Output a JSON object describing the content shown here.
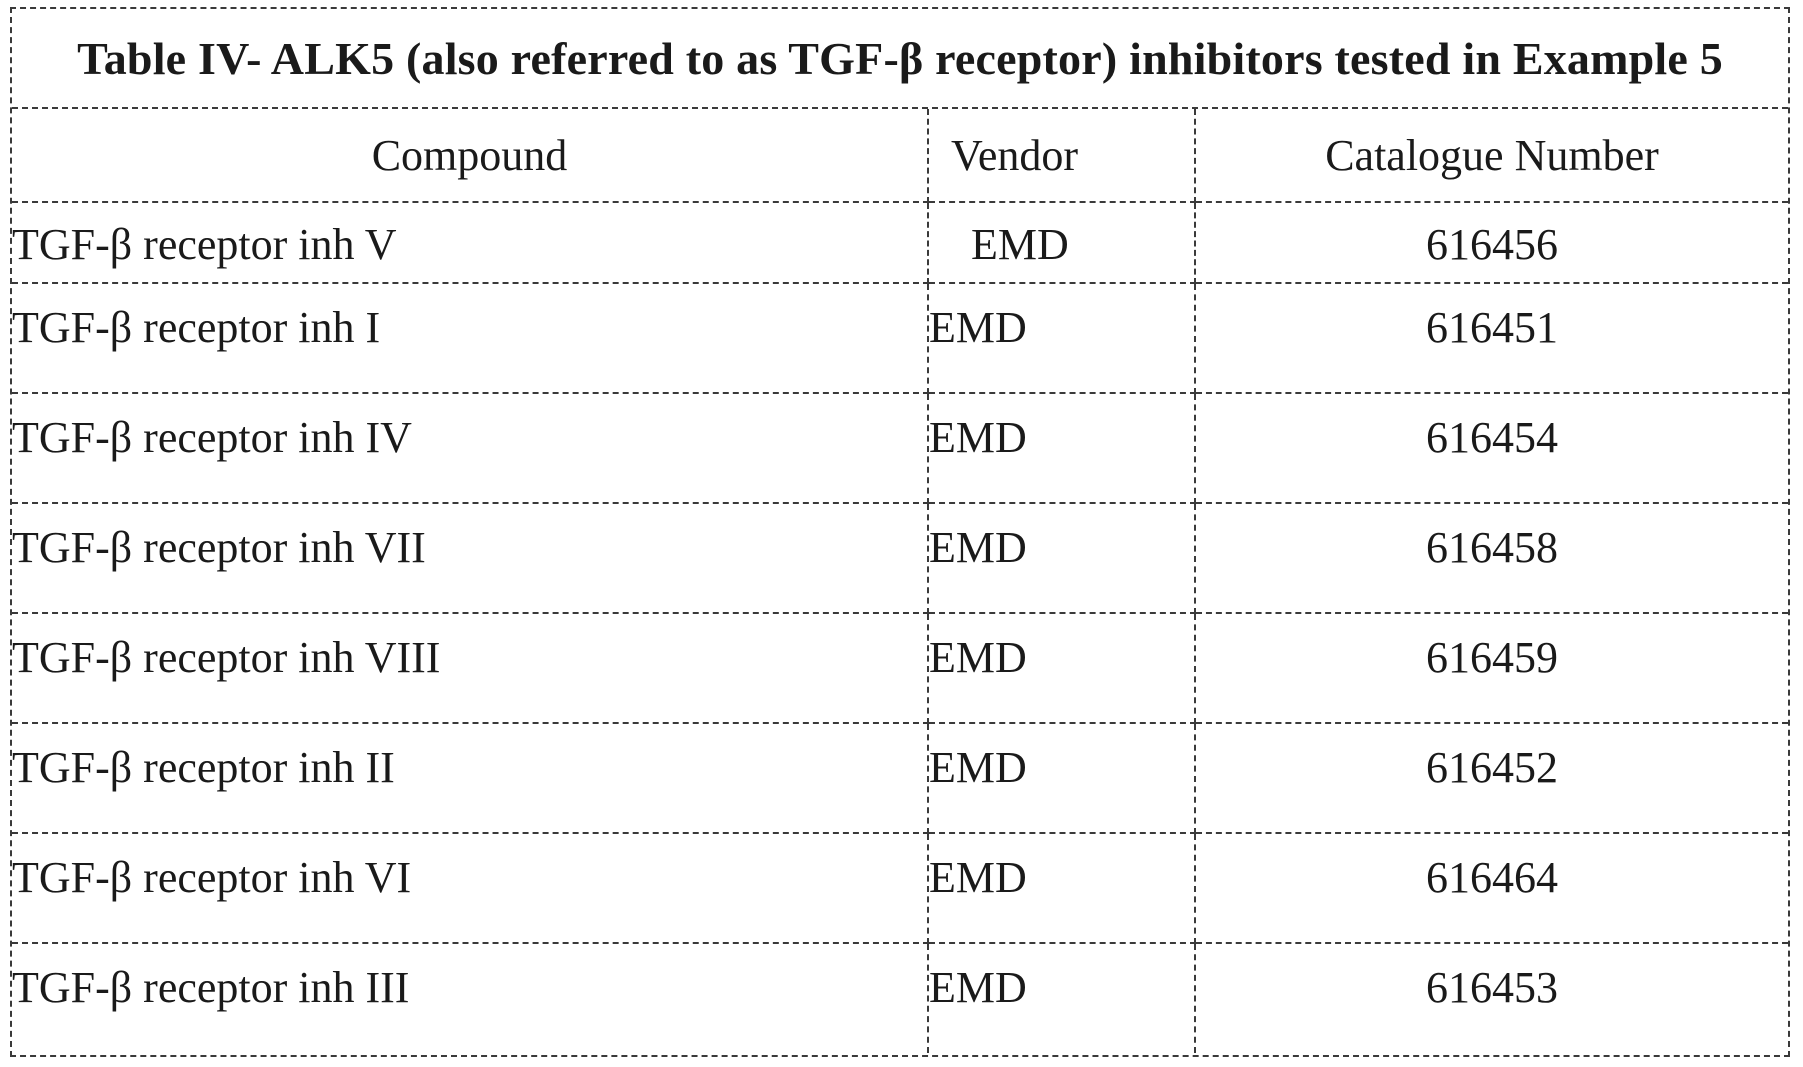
{
  "table": {
    "title": "Table IV- ALK5 (also referred to as TGF-β receptor) inhibitors tested in Example 5",
    "columns": [
      "Compound",
      "Vendor",
      "Catalogue Number"
    ],
    "rows": [
      {
        "compound": "TGF-β receptor inh V",
        "vendor": "EMD",
        "catalogue": "616456"
      },
      {
        "compound": "TGF-β receptor inh I",
        "vendor": "EMD",
        "catalogue": "616451"
      },
      {
        "compound": "TGF-β receptor inh IV",
        "vendor": "EMD",
        "catalogue": "616454"
      },
      {
        "compound": "TGF-β receptor inh VII",
        "vendor": "EMD",
        "catalogue": "616458"
      },
      {
        "compound": "TGF-β receptor inh VIII",
        "vendor": "EMD",
        "catalogue": "616459"
      },
      {
        "compound": "TGF-β receptor inh II",
        "vendor": "EMD",
        "catalogue": "616452"
      },
      {
        "compound": "TGF-β receptor inh VI",
        "vendor": "EMD",
        "catalogue": "616464"
      },
      {
        "compound": "TGF-β receptor inh III",
        "vendor": "EMD",
        "catalogue": "616453"
      }
    ]
  }
}
